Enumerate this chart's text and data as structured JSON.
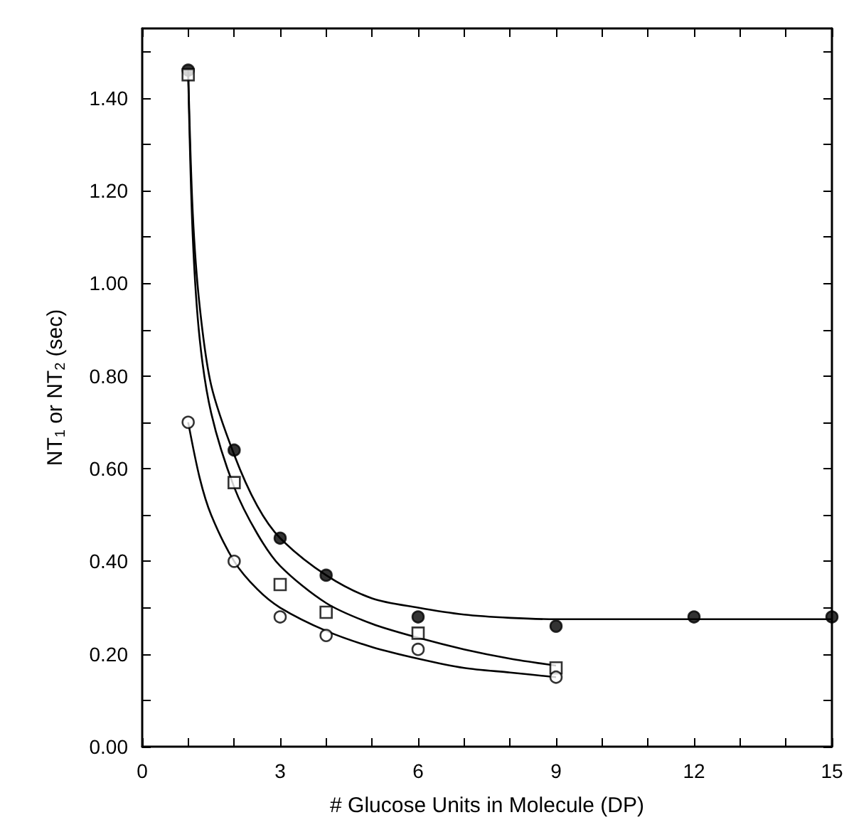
{
  "chart_data": {
    "type": "scatter",
    "xlabel": "# Glucose Units in Molecule (DP)",
    "ylabel": "NT$_{1}$ or NT$_{2}$ (sec)",
    "xlim": [
      0,
      15
    ],
    "ylim": [
      0,
      1.55
    ],
    "xticks": [
      0,
      {
        "value": 1,
        "label": null
      },
      {
        "value": 2,
        "label": null
      },
      3,
      {
        "value": 4,
        "label": null
      },
      {
        "value": 5,
        "label": null
      },
      6,
      {
        "value": 7,
        "label": null
      },
      {
        "value": 8,
        "label": null
      },
      9,
      {
        "value": 10,
        "label": null
      },
      {
        "value": 11,
        "label": null
      },
      12,
      {
        "value": 13,
        "label": null
      },
      {
        "value": 14,
        "label": null
      },
      15
    ],
    "yticks": [
      {
        "value": 0,
        "label": "0.00"
      },
      {
        "value": 0.1,
        "label": null
      },
      {
        "value": 0.2,
        "label": "0.20"
      },
      {
        "value": 0.3,
        "label": null
      },
      {
        "value": 0.4,
        "label": "0.40"
      },
      {
        "value": 0.5,
        "label": null
      },
      {
        "value": 0.6,
        "label": "0.60"
      },
      {
        "value": 0.7,
        "label": null
      },
      {
        "value": 0.8,
        "label": "0.80"
      },
      {
        "value": 0.9,
        "label": null
      },
      {
        "value": 1.0,
        "label": "1.00"
      },
      {
        "value": 1.1,
        "label": null
      },
      {
        "value": 1.2,
        "label": "1.20"
      },
      {
        "value": 1.3,
        "label": null
      },
      {
        "value": 1.4,
        "label": "1.40"
      },
      {
        "value": 1.5,
        "label": null
      }
    ],
    "grid": false,
    "series": [
      {
        "marker": "circle",
        "color": "#000000",
        "x": [
          1,
          2,
          3,
          4,
          6,
          9,
          12,
          15
        ],
        "values": [
          1.46,
          0.64,
          0.45,
          0.37,
          0.28,
          0.26,
          0.28,
          0.28
        ]
      },
      {
        "marker": "square",
        "color": "#000000",
        "x": [
          1,
          2,
          3,
          4,
          6,
          9
        ],
        "values": [
          1.45,
          0.57,
          0.35,
          0.29,
          0.245,
          0.17
        ]
      },
      {
        "marker": "circle",
        "color": "#000000",
        "x": [
          1,
          2,
          3,
          4,
          6,
          9
        ],
        "values": [
          0.7,
          0.4,
          0.28,
          0.24,
          0.21,
          0.15
        ]
      },
      {
        "type": "line",
        "marker": "none",
        "line_style": "solid",
        "color": "#000000",
        "x": [
          1,
          1.1,
          1.25,
          1.5,
          2,
          2.5,
          3,
          4,
          5,
          6,
          7,
          8,
          9,
          12,
          15
        ],
        "values": [
          1.46,
          1.15,
          0.95,
          0.78,
          0.63,
          0.52,
          0.45,
          0.37,
          0.32,
          0.3,
          0.285,
          0.278,
          0.275,
          0.275,
          0.275
        ]
      },
      {
        "type": "line",
        "marker": "none",
        "line_style": "solid",
        "color": "#000000",
        "x": [
          1,
          1.1,
          1.25,
          1.5,
          2,
          2.5,
          3,
          4,
          5,
          6,
          7,
          8,
          9
        ],
        "values": [
          1.45,
          1.1,
          0.88,
          0.72,
          0.56,
          0.46,
          0.39,
          0.31,
          0.265,
          0.235,
          0.21,
          0.19,
          0.175
        ]
      },
      {
        "type": "line",
        "marker": "none",
        "line_style": "solid",
        "color": "#000000",
        "x": [
          1,
          1.25,
          1.5,
          2,
          2.5,
          3,
          4,
          5,
          6,
          7,
          8,
          9
        ],
        "values": [
          0.7,
          0.58,
          0.5,
          0.4,
          0.34,
          0.3,
          0.25,
          0.215,
          0.19,
          0.17,
          0.16,
          0.15
        ]
      }
    ]
  }
}
